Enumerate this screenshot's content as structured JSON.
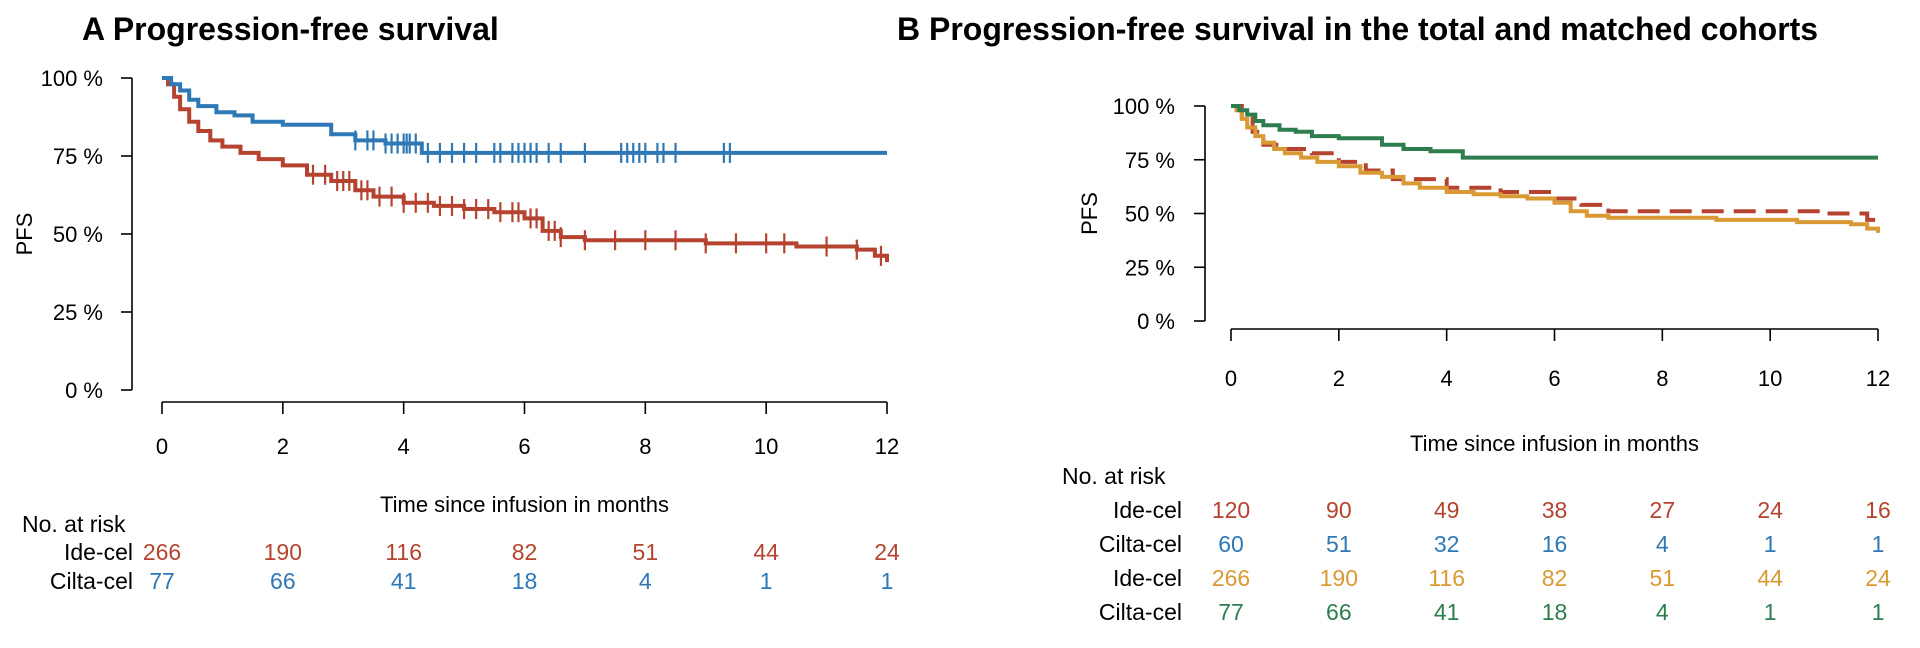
{
  "panel_a": {
    "title": "A Progression-free survival",
    "ylabel": "PFS",
    "xlabel": "Time since infusion in months",
    "y_tick_labels": [
      "0 %",
      "25 %",
      "50 %",
      "75 %",
      "100 %"
    ],
    "x_tick_labels": [
      "0",
      "2",
      "4",
      "6",
      "8",
      "10",
      "12"
    ],
    "risk_header": "No. at risk",
    "risk_rows": [
      {
        "label": "Ide-cel",
        "color": "#b5432f",
        "values": [
          "266",
          "190",
          "116",
          "82",
          "51",
          "44",
          "24"
        ]
      },
      {
        "label": "Cilta-cel",
        "color": "#2f78b6",
        "values": [
          "77",
          "66",
          "41",
          "18",
          "4",
          "1",
          "1"
        ]
      }
    ]
  },
  "panel_b": {
    "title": "B Progression-free survival in the total and matched cohorts",
    "ylabel": "PFS",
    "xlabel": "Time since infusion in months",
    "y_tick_labels": [
      "0 %",
      "25 %",
      "50 %",
      "75 %",
      "100 %"
    ],
    "x_tick_labels": [
      "0",
      "2",
      "4",
      "6",
      "8",
      "10",
      "12"
    ],
    "risk_header": "No. at risk",
    "risk_rows": [
      {
        "label": "Ide-cel",
        "color": "#b5432f",
        "values": [
          "120",
          "90",
          "49",
          "38",
          "27",
          "24",
          "16"
        ]
      },
      {
        "label": "Cilta-cel",
        "color": "#2f78b6",
        "values": [
          "60",
          "51",
          "32",
          "16",
          "4",
          "1",
          "1"
        ]
      },
      {
        "label": "Ide-cel",
        "color": "#d99a35",
        "values": [
          "266",
          "190",
          "116",
          "82",
          "51",
          "44",
          "24"
        ]
      },
      {
        "label": "Cilta-cel",
        "color": "#2e7d4f",
        "values": [
          "77",
          "66",
          "41",
          "18",
          "4",
          "1",
          "1"
        ]
      }
    ]
  },
  "chart_data": [
    {
      "type": "line",
      "subtype": "step",
      "title": "A Progression-free survival",
      "xlabel": "Time since infusion in months",
      "ylabel": "PFS",
      "xlim": [
        0,
        12
      ],
      "ylim": [
        0,
        100
      ],
      "x_ticks": [
        0,
        2,
        4,
        6,
        8,
        10,
        12
      ],
      "y_ticks": [
        0,
        25,
        50,
        75,
        100
      ],
      "grid": false,
      "series": [
        {
          "color": "#b5432f",
          "style": "solid",
          "x": [
            0,
            0.1,
            0.2,
            0.3,
            0.45,
            0.6,
            0.8,
            1.0,
            1.3,
            1.6,
            2.0,
            2.4,
            2.8,
            3.2,
            3.5,
            4.0,
            4.5,
            5.0,
            5.5,
            6.0,
            6.3,
            6.6,
            7.0,
            8.0,
            9.0,
            10.0,
            10.5,
            11.0,
            11.5,
            11.8,
            12.0
          ],
          "y": [
            100,
            98,
            94,
            90,
            86,
            83,
            80,
            78,
            76,
            74,
            72,
            69,
            67,
            64,
            62,
            60,
            59,
            58,
            57,
            55,
            51,
            49,
            48,
            48,
            47,
            47,
            46,
            46,
            45,
            43,
            41
          ],
          "censor_x": [
            2.5,
            2.7,
            2.9,
            3.0,
            3.1,
            3.3,
            3.4,
            3.6,
            3.8,
            4.0,
            4.2,
            4.4,
            4.6,
            4.8,
            5.0,
            5.2,
            5.4,
            5.6,
            5.8,
            5.9,
            6.1,
            6.2,
            6.4,
            6.5,
            6.6,
            7.0,
            7.5,
            8.0,
            8.5,
            9.0,
            9.5,
            10.0,
            10.3,
            11.0,
            11.5,
            11.9
          ]
        },
        {
          "color": "#2f78b6",
          "style": "solid",
          "x": [
            0,
            0.15,
            0.3,
            0.45,
            0.6,
            0.9,
            1.2,
            1.5,
            2.0,
            2.8,
            3.2,
            3.7,
            4.3,
            12.0
          ],
          "y": [
            100,
            98,
            96,
            93,
            91,
            89,
            88,
            86,
            85,
            82,
            80,
            79,
            76,
            76
          ],
          "censor_x": [
            3.2,
            3.4,
            3.5,
            3.7,
            3.8,
            3.9,
            4.0,
            4.05,
            4.1,
            4.2,
            4.4,
            4.6,
            4.8,
            5.0,
            5.2,
            5.5,
            5.6,
            5.8,
            5.9,
            6.0,
            6.1,
            6.2,
            6.4,
            6.6,
            7.0,
            7.6,
            7.7,
            7.8,
            7.9,
            8.0,
            8.2,
            8.3,
            8.5,
            9.3,
            9.4
          ]
        }
      ],
      "risk_table": {
        "time_points": [
          0,
          2,
          4,
          6,
          8,
          10,
          12
        ],
        "Ide-cel": [
          266,
          190,
          116,
          82,
          51,
          44,
          24
        ],
        "Cilta-cel": [
          77,
          66,
          41,
          18,
          4,
          1,
          1
        ]
      }
    },
    {
      "type": "line",
      "subtype": "step",
      "title": "B Progression-free survival in the total and matched cohorts",
      "xlabel": "Time since infusion in months",
      "ylabel": "PFS",
      "xlim": [
        0,
        12
      ],
      "ylim": [
        0,
        100
      ],
      "x_ticks": [
        0,
        2,
        4,
        6,
        8,
        10,
        12
      ],
      "y_ticks": [
        0,
        25,
        50,
        75,
        100
      ],
      "grid": false,
      "series": [
        {
          "color": "#b5432f",
          "style": "dashed",
          "x": [
            0,
            0.2,
            0.4,
            0.6,
            1.0,
            1.5,
            2.0,
            2.5,
            3.0,
            4.0,
            5.0,
            6.0,
            6.5,
            7.0,
            8.0,
            10.0,
            11.0,
            11.8,
            12.0
          ],
          "y": [
            100,
            95,
            88,
            82,
            80,
            78,
            74,
            70,
            66,
            62,
            60,
            57,
            54,
            51,
            51,
            51,
            50,
            47,
            46
          ]
        },
        {
          "color": "#d99a35",
          "style": "solid",
          "x": [
            0,
            0.1,
            0.2,
            0.3,
            0.45,
            0.6,
            0.8,
            1.0,
            1.3,
            1.6,
            2.0,
            2.4,
            2.8,
            3.2,
            3.5,
            4.0,
            4.5,
            5.0,
            5.5,
            6.0,
            6.3,
            6.6,
            7.0,
            8.0,
            9.0,
            10.0,
            10.5,
            11.0,
            11.5,
            11.8,
            12.0
          ],
          "y": [
            100,
            98,
            94,
            90,
            86,
            83,
            80,
            78,
            76,
            74,
            72,
            69,
            67,
            64,
            62,
            60,
            59,
            58,
            57,
            55,
            51,
            49,
            48,
            48,
            47,
            47,
            46,
            46,
            45,
            43,
            41
          ]
        },
        {
          "color": "#2e7d4f",
          "style": "solid",
          "x": [
            0,
            0.15,
            0.3,
            0.45,
            0.6,
            0.9,
            1.2,
            1.5,
            2.0,
            2.8,
            3.2,
            3.7,
            4.3,
            12.0
          ],
          "y": [
            100,
            98,
            96,
            93,
            91,
            89,
            88,
            86,
            85,
            82,
            80,
            79,
            76,
            76
          ]
        }
      ],
      "risk_table": {
        "time_points": [
          0,
          2,
          4,
          6,
          8,
          10,
          12
        ],
        "rows": [
          {
            "label": "Ide-cel",
            "values": [
              120,
              90,
              49,
              38,
              27,
              24,
              16
            ]
          },
          {
            "label": "Cilta-cel",
            "values": [
              60,
              51,
              32,
              16,
              4,
              1,
              1
            ]
          },
          {
            "label": "Ide-cel",
            "values": [
              266,
              190,
              116,
              82,
              51,
              44,
              24
            ]
          },
          {
            "label": "Cilta-cel",
            "values": [
              77,
              66,
              41,
              18,
              4,
              1,
              1
            ]
          }
        ]
      }
    }
  ]
}
